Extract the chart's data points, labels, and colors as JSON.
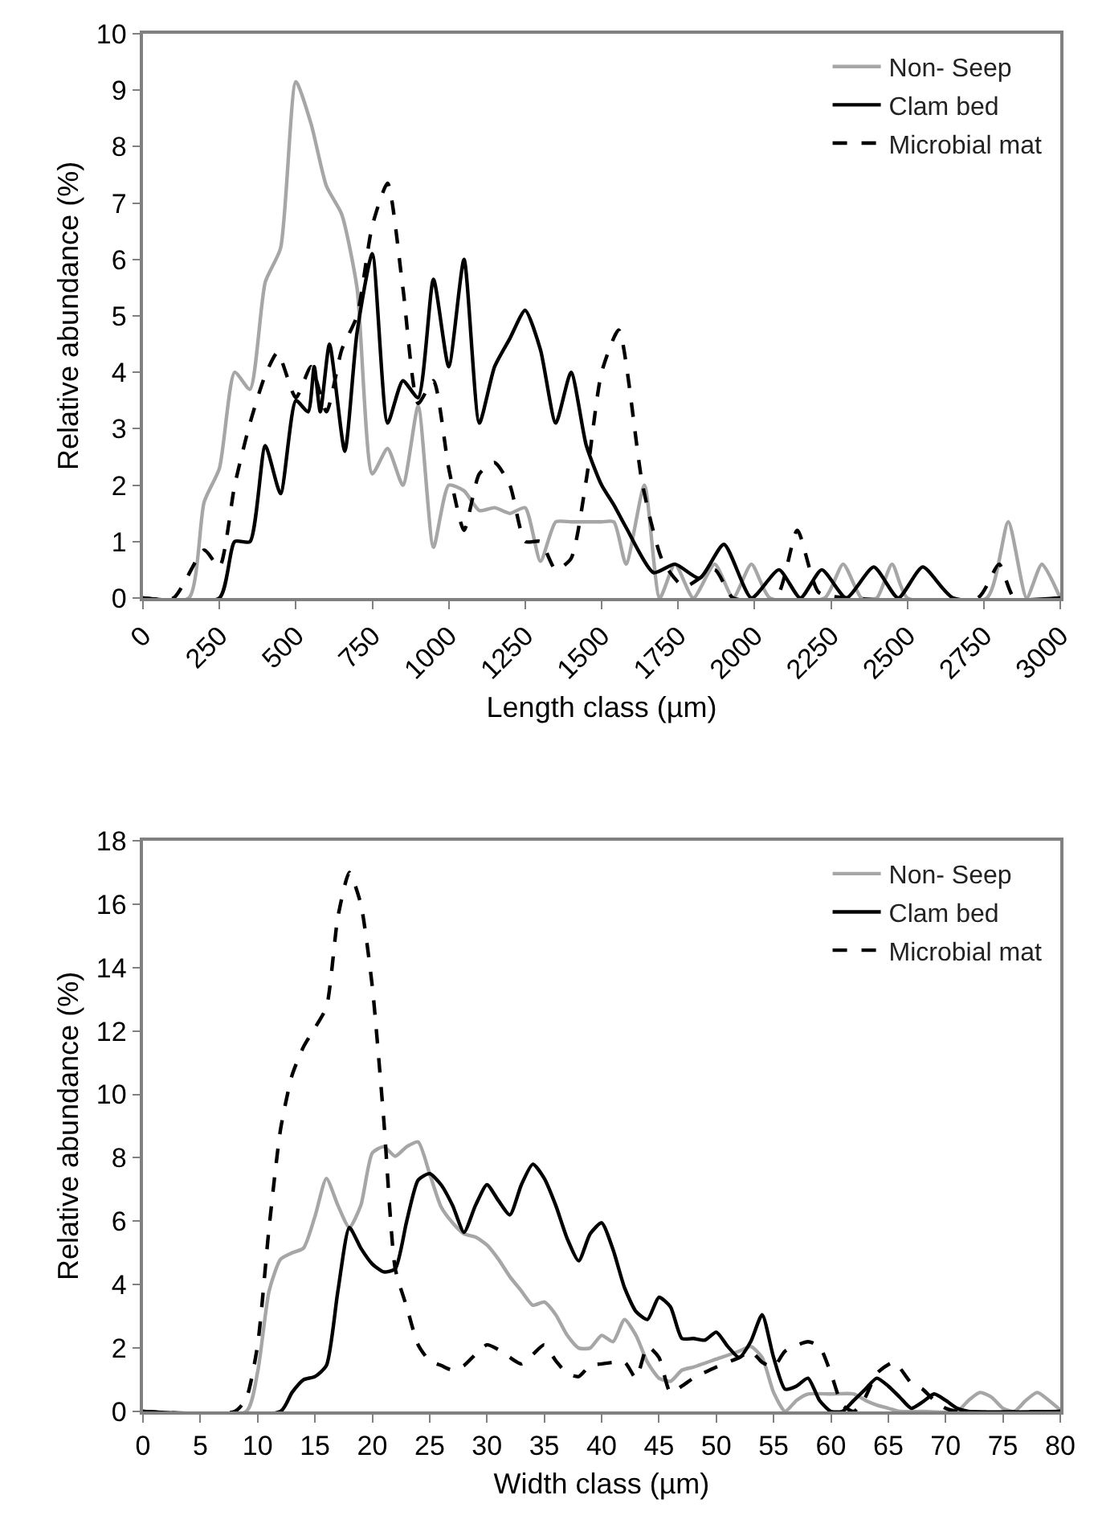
{
  "chart_data": [
    {
      "type": "line",
      "xlabel": "Length class (µm)",
      "ylabel": "Relative abundance (%)",
      "xlim": [
        0,
        3000
      ],
      "xticks": [
        0,
        250,
        500,
        750,
        1000,
        1250,
        1500,
        1750,
        2000,
        2250,
        2500,
        2750,
        3000
      ],
      "ylim": [
        0,
        10
      ],
      "yticks": [
        0,
        1,
        2,
        3,
        4,
        5,
        6,
        7,
        8,
        9,
        10
      ],
      "grid": false,
      "legend": "top right",
      "marker": "none",
      "series": [
        {
          "name": "Non- Seep",
          "color": "#a6a6a6",
          "line_style": "solid",
          "x": [
            0,
            150,
            200,
            250,
            300,
            350,
            400,
            450,
            500,
            550,
            600,
            650,
            700,
            750,
            800,
            850,
            900,
            950,
            1000,
            1050,
            1100,
            1150,
            1200,
            1250,
            1300,
            1350,
            1400,
            1450,
            1500,
            1540,
            1580,
            1640,
            1690,
            1740,
            1800,
            1870,
            1930,
            1990,
            2050,
            2230,
            2290,
            2350,
            2400,
            2450,
            2500,
            2760,
            2830,
            2890,
            2940,
            3000
          ],
          "values": [
            0,
            0,
            1.7,
            2.3,
            4.0,
            3.7,
            5.6,
            6.2,
            9.15,
            8.4,
            7.3,
            6.8,
            5.5,
            2.2,
            2.65,
            2.0,
            3.4,
            0.9,
            2.0,
            1.9,
            1.55,
            1.6,
            1.5,
            1.6,
            0.65,
            1.35,
            1.35,
            1.35,
            1.35,
            1.35,
            0.6,
            2.0,
            0,
            0.6,
            0,
            0.6,
            0,
            0.6,
            0,
            0,
            0.6,
            0,
            0,
            0.6,
            0,
            0,
            1.35,
            0,
            0.6,
            0
          ]
        },
        {
          "name": "Clam bed",
          "color": "#000000",
          "line_style": "solid",
          "x": [
            0,
            250,
            300,
            350,
            400,
            450,
            500,
            540,
            560,
            580,
            610,
            660,
            700,
            750,
            800,
            850,
            900,
            950,
            1000,
            1050,
            1100,
            1150,
            1200,
            1250,
            1300,
            1350,
            1400,
            1450,
            1500,
            1540,
            1580,
            1670,
            1740,
            1820,
            1900,
            1990,
            2080,
            2150,
            2220,
            2300,
            2390,
            2470,
            2550,
            2650,
            3000
          ],
          "values": [
            0,
            0,
            1.0,
            1.0,
            2.7,
            1.85,
            3.5,
            3.3,
            4.1,
            3.3,
            4.5,
            2.6,
            4.7,
            6.1,
            3.1,
            3.85,
            3.55,
            5.65,
            4.1,
            6.0,
            3.1,
            4.1,
            4.6,
            5.1,
            4.4,
            3.1,
            4.0,
            2.7,
            2.0,
            1.65,
            1.25,
            0.45,
            0.6,
            0.35,
            0.95,
            0,
            0.5,
            0,
            0.5,
            0,
            0.55,
            0,
            0.55,
            0,
            0
          ]
        },
        {
          "name": "Microbial mat",
          "color": "#000000",
          "line_style": "dashed",
          "x": [
            0,
            100,
            200,
            250,
            300,
            350,
            400,
            440,
            500,
            550,
            600,
            650,
            700,
            750,
            800,
            850,
            900,
            950,
            1000,
            1050,
            1100,
            1150,
            1200,
            1250,
            1300,
            1350,
            1400,
            1450,
            1500,
            1556,
            1634,
            1700,
            1770,
            1870,
            1930,
            2070,
            2140,
            2210,
            2310,
            2730,
            2800,
            2850,
            3000
          ],
          "values": [
            0,
            0,
            0.85,
            0.55,
            2.0,
            3.1,
            3.95,
            4.35,
            3.55,
            4.1,
            3.3,
            4.4,
            5.0,
            6.6,
            7.35,
            5.5,
            3.45,
            3.85,
            2.3,
            1.2,
            2.2,
            2.4,
            2.0,
            1.0,
            1.0,
            0.5,
            0.7,
            2.1,
            4.0,
            4.75,
            2.0,
            0.65,
            0.2,
            0.5,
            0,
            0,
            1.2,
            0.1,
            0,
            0,
            0.6,
            0,
            0
          ]
        }
      ]
    },
    {
      "type": "line",
      "xlabel": "Width class (µm)",
      "ylabel": "Relative abundance (%)",
      "xlim": [
        0,
        80
      ],
      "xticks": [
        0,
        5,
        10,
        15,
        20,
        25,
        30,
        35,
        40,
        45,
        50,
        55,
        60,
        65,
        70,
        75,
        80
      ],
      "ylim": [
        0,
        18
      ],
      "yticks": [
        0,
        2,
        4,
        6,
        8,
        10,
        12,
        14,
        16,
        18
      ],
      "grid": false,
      "legend": "top right",
      "marker": "none",
      "series": [
        {
          "name": "Non- Seep",
          "color": "#a6a6a6",
          "line_style": "solid",
          "x": [
            0,
            9,
            10,
            11,
            12,
            13,
            14,
            15,
            16,
            17,
            18,
            19,
            20,
            21,
            22,
            23,
            24,
            25,
            26,
            27,
            28,
            29,
            30,
            31,
            32,
            33,
            34,
            35,
            36,
            37,
            38,
            39,
            40,
            41,
            42,
            43,
            44,
            45,
            46,
            47,
            48,
            50,
            52,
            53,
            54,
            55,
            56,
            57,
            58,
            60,
            62,
            63,
            64,
            65,
            66,
            68,
            71,
            72,
            73,
            74,
            75,
            76,
            77,
            78,
            79,
            80
          ],
          "values": [
            0,
            0,
            1.25,
            3.8,
            4.8,
            5.0,
            5.15,
            6.15,
            7.35,
            6.5,
            5.8,
            6.5,
            8.15,
            8.35,
            8.05,
            8.35,
            8.5,
            7.5,
            6.45,
            5.95,
            5.6,
            5.5,
            5.25,
            4.8,
            4.25,
            3.8,
            3.35,
            3.45,
            3.05,
            2.4,
            2.0,
            2.0,
            2.4,
            2.2,
            2.9,
            2.4,
            1.55,
            1.05,
            0.95,
            1.3,
            1.4,
            1.65,
            1.9,
            2.05,
            1.7,
            0.6,
            0,
            0.35,
            0.55,
            0.55,
            0.55,
            0.35,
            0.2,
            0.1,
            0,
            0,
            0,
            0.35,
            0.6,
            0.45,
            0.1,
            0,
            0.35,
            0.6,
            0.35,
            0.05
          ]
        },
        {
          "name": "Clam bed",
          "color": "#000000",
          "line_style": "solid",
          "x": [
            0,
            12,
            13,
            14,
            15,
            16,
            17,
            18,
            19,
            20,
            21,
            22,
            23,
            24,
            25,
            26,
            27,
            28,
            29,
            30,
            31,
            32,
            33,
            34,
            35,
            36,
            37,
            38,
            39,
            40,
            41,
            42,
            43,
            44,
            45,
            46,
            47,
            48,
            49,
            50,
            51,
            52,
            53,
            54,
            55,
            56,
            57,
            58,
            59,
            60,
            61,
            62,
            63,
            64,
            65,
            66,
            67,
            68,
            69,
            70,
            71,
            72,
            80
          ],
          "values": [
            0,
            0,
            0.6,
            1.0,
            1.1,
            1.45,
            3.8,
            5.8,
            5.15,
            4.65,
            4.4,
            4.5,
            6.0,
            7.3,
            7.5,
            7.15,
            6.5,
            5.65,
            6.5,
            7.15,
            6.65,
            6.2,
            7.15,
            7.8,
            7.35,
            6.5,
            5.45,
            4.75,
            5.6,
            5.95,
            5.1,
            3.9,
            3.15,
            2.9,
            3.6,
            3.3,
            2.3,
            2.3,
            2.25,
            2.5,
            2.05,
            1.7,
            2.2,
            3.05,
            1.7,
            0.7,
            0.8,
            1.05,
            0.35,
            0,
            0,
            0.35,
            0.7,
            1.05,
            0.8,
            0.45,
            0.1,
            0.3,
            0.55,
            0.35,
            0.1,
            0,
            0
          ]
        },
        {
          "name": "Microbial mat",
          "color": "#000000",
          "line_style": "dashed",
          "x": [
            0,
            8,
            9,
            10,
            11,
            12,
            13,
            14,
            15,
            16,
            17,
            18,
            19,
            20,
            21,
            22,
            23,
            24,
            25,
            26,
            27,
            28,
            29,
            30,
            31,
            32,
            33,
            34,
            35,
            36,
            37,
            38,
            39,
            40,
            42,
            43,
            44,
            45,
            46,
            47,
            48,
            50,
            52,
            53,
            54,
            55,
            56,
            58,
            59,
            60,
            61,
            62,
            63,
            64,
            65.5,
            67,
            68,
            69,
            70,
            71,
            80
          ],
          "values": [
            0,
            0,
            0.4,
            2.1,
            5.8,
            8.9,
            10.6,
            11.5,
            12.1,
            12.75,
            15.6,
            17.0,
            16.0,
            13.4,
            9.2,
            4.5,
            3.3,
            2.1,
            1.6,
            1.45,
            1.3,
            1.45,
            1.8,
            2.1,
            1.95,
            1.7,
            1.5,
            1.8,
            2.1,
            1.6,
            1.2,
            1.1,
            1.45,
            1.5,
            1.55,
            1.05,
            2.05,
            1.7,
            0.6,
            0.8,
            1.05,
            1.4,
            1.7,
            1.9,
            1.55,
            1.4,
            1.9,
            2.2,
            2.05,
            1.2,
            0.2,
            0,
            0.45,
            1.2,
            1.55,
            0.9,
            0.7,
            0.35,
            0.1,
            0,
            0
          ]
        }
      ]
    }
  ]
}
